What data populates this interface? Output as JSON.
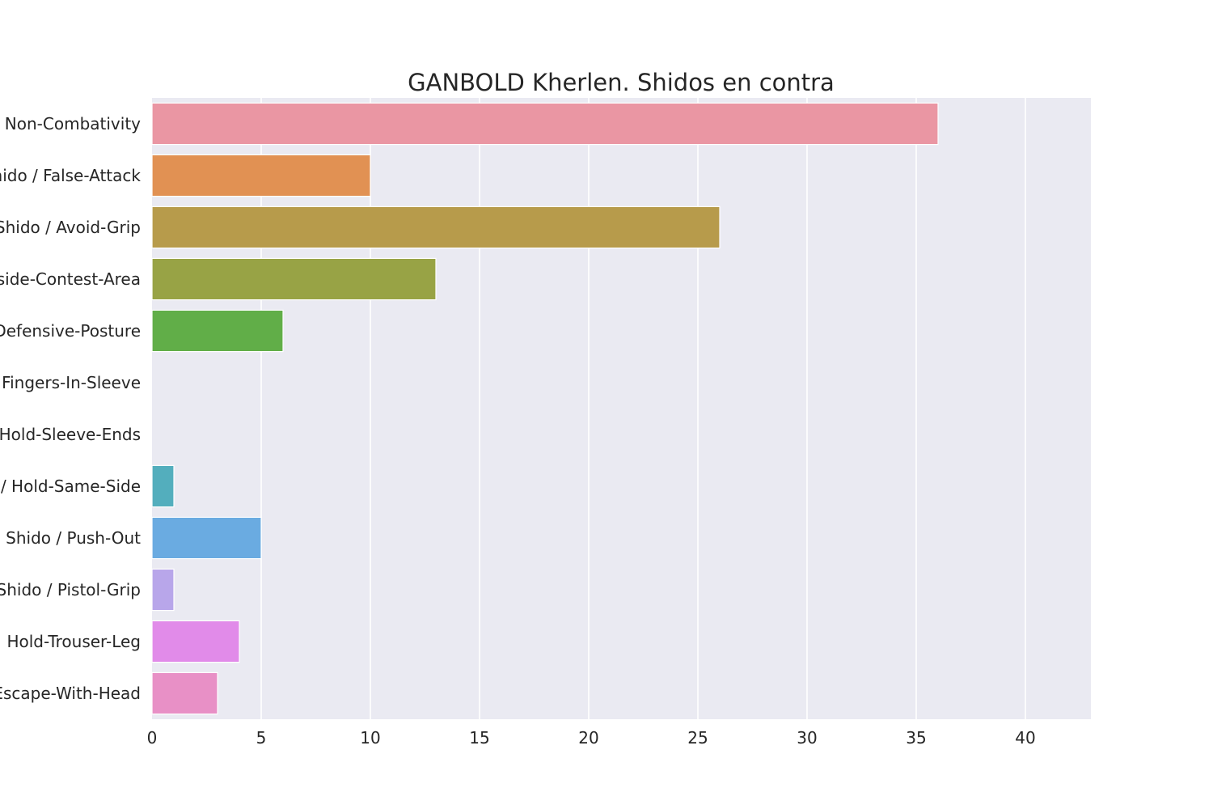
{
  "chart_data": {
    "type": "bar",
    "orientation": "horizontal",
    "title": "GANBOLD Kherlen. Shidos en contra",
    "xlabel": "",
    "ylabel": "",
    "xlim": [
      0,
      43
    ],
    "xticks": [
      0,
      5,
      10,
      15,
      20,
      25,
      30,
      35,
      40
    ],
    "grid": true,
    "categories": [
      "Non-Combativity",
      "Shido / False-Attack",
      "Shido / Avoid-Grip",
      "Outside-Contest-Area",
      "Defensive-Posture",
      "Fingers-In-Sleeve",
      "Hold-Sleeve-Ends",
      "/ Hold-Same-Side",
      "Shido / Push-Out",
      "Shido / Pistol-Grip",
      "Hold-Trouser-Leg",
      "Escape-With-Head"
    ],
    "values": [
      36,
      10,
      26,
      13,
      6,
      0,
      0,
      1,
      5,
      1,
      4,
      3
    ],
    "colors": [
      "#ea96a3",
      "#e19153",
      "#b79b4b",
      "#98a345",
      "#61ae48",
      "#50b386",
      "#53b1a1",
      "#53aebd",
      "#6aabe1",
      "#b8a6ea",
      "#e18be9",
      "#e890c6"
    ],
    "background": "#eaeaf2",
    "gridline_color": "#ffffff"
  }
}
